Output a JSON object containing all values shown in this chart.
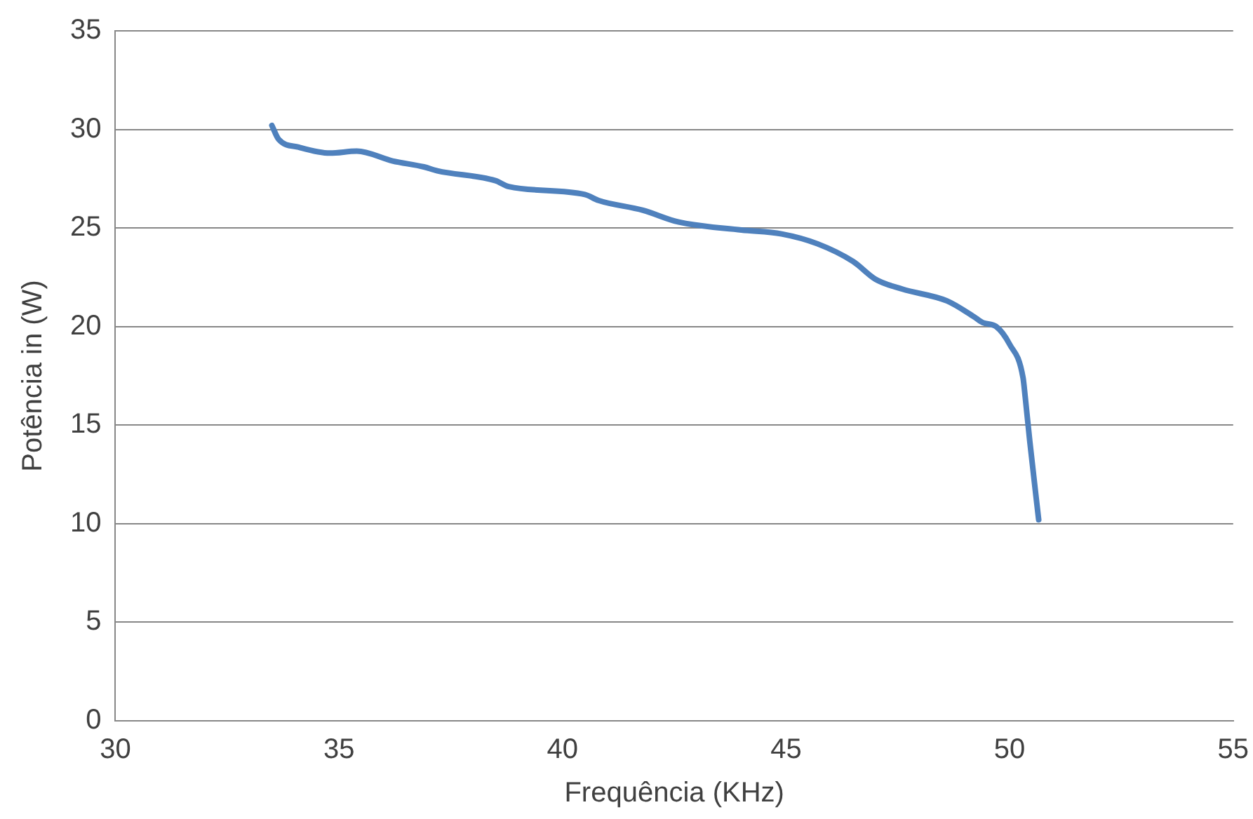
{
  "chart_data": {
    "type": "line",
    "xlabel": "Frequência (KHz)",
    "ylabel": "Potência in (W)",
    "xlim": [
      30,
      55
    ],
    "xticks": [
      30,
      35,
      40,
      45,
      50,
      55
    ],
    "ylim": [
      0,
      35
    ],
    "yticks": [
      0,
      5,
      10,
      15,
      20,
      25,
      30,
      35
    ],
    "grid": "y",
    "marker": "none",
    "line_style": "solid",
    "legend": false,
    "series": [
      {
        "color": "#4f81bd",
        "x": [
          33.5,
          33.65,
          34.1,
          34.8,
          35.4,
          36.2,
          36.9,
          37.2,
          38.5,
          38.8,
          40.5,
          40.8,
          41.8,
          42.6,
          44.0,
          44.9,
          45.7,
          46.5,
          47.0,
          47.6,
          48.6,
          49.2,
          49.4,
          49.7,
          50.0,
          50.3,
          50.35,
          50.45,
          50.65
        ],
        "values": [
          30.2,
          29.5,
          29.1,
          28.8,
          28.9,
          28.4,
          28.1,
          27.9,
          27.4,
          27.1,
          26.7,
          26.4,
          25.9,
          25.3,
          24.9,
          24.7,
          24.2,
          23.3,
          22.4,
          21.9,
          21.3,
          20.5,
          20.2,
          20.0,
          19.1,
          17.4,
          16.4,
          14.2,
          10.2
        ]
      }
    ]
  }
}
